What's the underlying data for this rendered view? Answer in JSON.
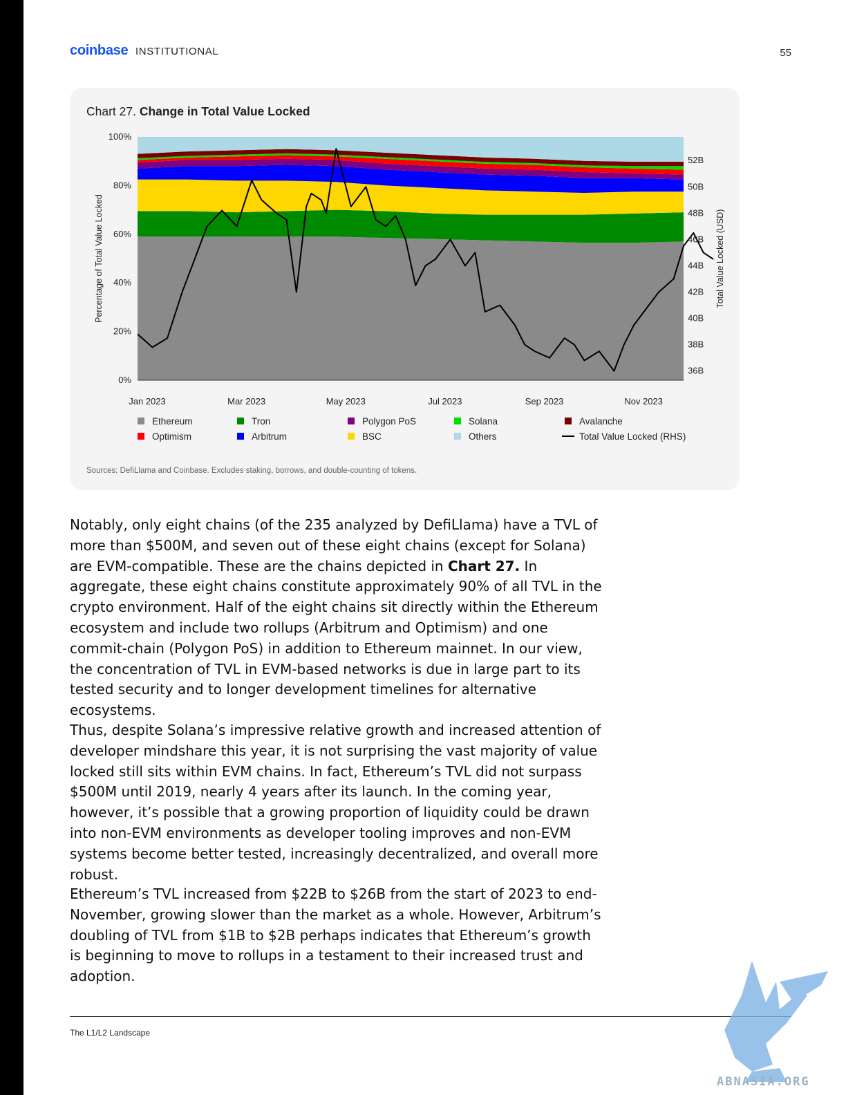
{
  "header": {
    "brand": "coinbase",
    "brand_sub": "INSTITUTIONAL",
    "page_number": "55"
  },
  "chart": {
    "caption_prefix": "Chart 27. ",
    "caption_title": "Change in Total Value Locked",
    "source_note": "Sources: DefiLlama and Coinbase. Excludes staking, borrows, and double-counting of tokens."
  },
  "chart_data": {
    "type": "area",
    "stacked_percent": true,
    "title": "Chart 27. Change in Total Value Locked",
    "ylabel": "Percentage of Total Value Locked",
    "y2label": "Total Value Locked (USD)",
    "x_ticks": [
      "Jan 2023",
      "Mar 2023",
      "May 2023",
      "Jul 2023",
      "Sep 2023",
      "Nov 2023"
    ],
    "y_ticks": [
      "0%",
      "20%",
      "40%",
      "60%",
      "80%",
      "100%"
    ],
    "y_range": [
      0,
      100
    ],
    "y2_ticks": [
      "36B",
      "38B",
      "40B",
      "42B",
      "44B",
      "46B",
      "48B",
      "50B",
      "52B"
    ],
    "y2_range": [
      35.3,
      53.8
    ],
    "x_months": [
      0,
      11
    ],
    "series": [
      {
        "name": "Ethereum",
        "color": "#8a8a8a",
        "x": [
          0,
          1,
          2,
          3,
          4,
          5,
          6,
          7,
          8,
          9,
          10,
          11
        ],
        "values": [
          59,
          59,
          59,
          59,
          59,
          58.5,
          58,
          57.5,
          57,
          56.5,
          56.5,
          57
        ]
      },
      {
        "name": "Tron",
        "color": "#008a00",
        "x": [
          0,
          1,
          2,
          3,
          4,
          5,
          6,
          7,
          8,
          9,
          10,
          11
        ],
        "values": [
          10.5,
          10.5,
          10,
          10.5,
          11,
          11,
          10.5,
          10.5,
          11,
          11.5,
          12,
          12
        ]
      },
      {
        "name": "BSC",
        "color": "#ffd700",
        "x": [
          0,
          1,
          2,
          3,
          4,
          5,
          6,
          7,
          8,
          9,
          10,
          11
        ],
        "values": [
          13,
          13,
          13,
          12.5,
          11.5,
          10.5,
          10.5,
          10,
          9.5,
          9,
          9,
          8.5
        ]
      },
      {
        "name": "Arbitrum",
        "color": "#0000ff",
        "x": [
          0,
          1,
          2,
          3,
          4,
          5,
          6,
          7,
          8,
          9,
          10,
          11
        ],
        "values": [
          4.5,
          5.5,
          6,
          6.5,
          6.5,
          6.5,
          6.5,
          6.5,
          6.5,
          6,
          5.5,
          5
        ]
      },
      {
        "name": "Polygon PoS",
        "color": "#800080",
        "x": [
          0,
          1,
          2,
          3,
          4,
          5,
          6,
          7,
          8,
          9,
          10,
          11
        ],
        "values": [
          2.5,
          2.5,
          2.5,
          2.5,
          2.5,
          2.5,
          2.5,
          2.5,
          2.5,
          2.5,
          2,
          2
        ]
      },
      {
        "name": "Optimism",
        "color": "#ff0000",
        "x": [
          0,
          1,
          2,
          3,
          4,
          5,
          6,
          7,
          8,
          9,
          10,
          11
        ],
        "values": [
          1,
          1,
          1.5,
          1.5,
          1.5,
          2,
          2,
          2,
          2,
          2,
          2,
          2
        ]
      },
      {
        "name": "Solana",
        "color": "#00e000",
        "x": [
          0,
          1,
          2,
          3,
          4,
          5,
          6,
          7,
          8,
          9,
          10,
          11
        ],
        "values": [
          0.7,
          0.7,
          0.7,
          0.7,
          0.7,
          0.7,
          0.7,
          0.7,
          0.7,
          0.8,
          1,
          1.5
        ]
      },
      {
        "name": "Avalanche",
        "color": "#7a0000",
        "x": [
          0,
          1,
          2,
          3,
          4,
          5,
          6,
          7,
          8,
          9,
          10,
          11
        ],
        "values": [
          1.8,
          1.8,
          1.8,
          1.8,
          1.8,
          1.8,
          1.8,
          1.8,
          1.8,
          1.8,
          1.8,
          1.8
        ]
      },
      {
        "name": "Others",
        "color": "#add8e6",
        "x": [
          0,
          1,
          2,
          3,
          4,
          5,
          6,
          7,
          8,
          9,
          10,
          11
        ],
        "values": [
          7,
          6,
          5.5,
          5,
          5.5,
          6.5,
          7.5,
          8.5,
          9,
          9.9,
          10.2,
          10.2
        ]
      }
    ],
    "tvl_line": {
      "name": "Total Value Locked (RHS)",
      "color": "#000000",
      "x": [
        0,
        0.3,
        0.6,
        0.9,
        1.15,
        1.4,
        1.7,
        2.0,
        2.3,
        2.5,
        2.8,
        3.0,
        3.2,
        3.4,
        3.5,
        3.7,
        3.8,
        4.0,
        4.3,
        4.6,
        4.8,
        5.0,
        5.2,
        5.4,
        5.6,
        5.8,
        6.0,
        6.3,
        6.6,
        6.8,
        7.0,
        7.3,
        7.6,
        7.8,
        8.0,
        8.3,
        8.6,
        8.8,
        9.0,
        9.3,
        9.6,
        9.8,
        10.0,
        10.2,
        10.5,
        10.8,
        11.0,
        11.2,
        11.4,
        11.6
      ],
      "values": [
        38.8,
        37.8,
        38.5,
        42.0,
        44.5,
        47.0,
        48.2,
        47.0,
        50.5,
        49.0,
        48.0,
        47.5,
        42.0,
        48.5,
        49.5,
        49.0,
        48.0,
        52.9,
        48.5,
        50.0,
        47.5,
        47.0,
        47.8,
        46.0,
        42.5,
        44.0,
        44.5,
        46.0,
        44.0,
        45.0,
        40.5,
        41.0,
        39.5,
        38.0,
        37.5,
        37.0,
        38.5,
        38.0,
        36.8,
        37.5,
        36.0,
        38.0,
        39.5,
        40.5,
        42.0,
        43.0,
        45.5,
        46.5,
        45.0,
        44.5
      ]
    },
    "legend": [
      {
        "name": "Ethereum",
        "color": "#8a8a8a",
        "kind": "square"
      },
      {
        "name": "Tron",
        "color": "#008a00",
        "kind": "square"
      },
      {
        "name": "Polygon PoS",
        "color": "#800080",
        "kind": "square"
      },
      {
        "name": "Solana",
        "color": "#00e000",
        "kind": "square"
      },
      {
        "name": "Avalanche",
        "color": "#7a0000",
        "kind": "square"
      },
      {
        "name": "Optimism",
        "color": "#ff0000",
        "kind": "square"
      },
      {
        "name": "Arbitrum",
        "color": "#0000ff",
        "kind": "square"
      },
      {
        "name": "BSC",
        "color": "#ffd700",
        "kind": "square"
      },
      {
        "name": "Others",
        "color": "#add8e6",
        "kind": "square"
      },
      {
        "name": "Total Value Locked (RHS)",
        "color": "#000000",
        "kind": "line"
      }
    ],
    "legend_placement": "bottom",
    "grid": false
  },
  "body": {
    "p1_a": "Notably, only eight chains (of the 235 analyzed by DefiLlama) have a TVL of more than $500M, and seven out of these eight chains (except for Solana) are EVM-compatible. These are the chains depicted in ",
    "p1_bold": "Chart 27.",
    "p1_b": " In aggregate, these eight chains constitute approximately 90% of all TVL in the crypto environment. Half of the eight chains sit directly within the Ethereum ecosystem and include two rollups (Arbitrum and Optimism) and one commit-chain (Polygon PoS) in addition to Ethereum mainnet. In our view, the concentration of TVL in EVM-based networks is due in large part to its tested security and to longer development timelines for alternative ecosystems.",
    "p2": "Thus, despite Solana’s impressive relative growth and increased attention of developer mindshare this year, it is not surprising the vast majority of value locked still sits within EVM chains. In fact, Ethereum’s TVL did not surpass $500M until 2019, nearly 4 years after its launch. In the coming year, however, it’s possible that a growing proportion of liquidity could be drawn into non-EVM environments as developer tooling improves and non-EVM systems become better tested, increasingly decentralized, and overall more robust.",
    "p3": "Ethereum’s TVL increased from $22B to $26B from the start of 2023 to end-November, growing slower than the market as a whole. However, Arbitrum’s doubling of TVL from $1B to $2B perhaps indicates that Ethereum’s growth is beginning to move to rollups in a testament to their increased trust and adoption."
  },
  "footer": {
    "label": "The L1/L2 Landscape"
  },
  "watermark": {
    "text": "ABNASIA.ORG"
  }
}
